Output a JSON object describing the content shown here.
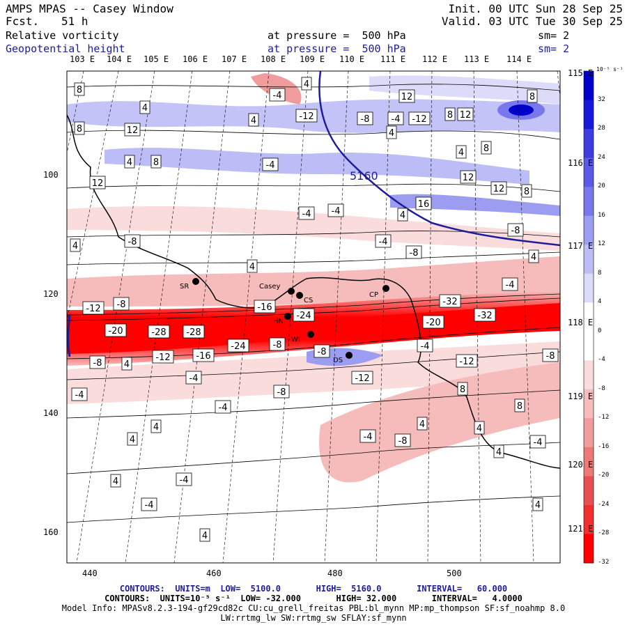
{
  "header": {
    "title": "AMPS MPAS -- Casey Window",
    "forecast_label": "Fcst.",
    "forecast_value": "51 h",
    "init": "Init. 00 UTC Sun 28 Sep 25",
    "valid": "Valid. 03 UTC Tue 30 Sep 25",
    "field1": "Relative vorticity",
    "field1_pressure": "at pressure =  500 hPa",
    "field1_sm": "sm= 2",
    "field2": "Geopotential height",
    "field2_pressure": "at pressure =  500 hPa",
    "field2_sm": "sm= 2"
  },
  "top_lon_labels": [
    "103 E",
    "104 E",
    "105 E",
    "106 E",
    "107 E",
    "108 E",
    "109 E",
    "110 E",
    "111 E",
    "112 E",
    "113 E",
    "114 E"
  ],
  "right_lat_labels": [
    "115 E",
    "116 E",
    "117 E",
    "118 E",
    "119 E",
    "120 E",
    "121 E"
  ],
  "x_axis_labels": [
    "440",
    "460",
    "480",
    "500"
  ],
  "y_axis_labels": [
    "100",
    "120",
    "140",
    "160"
  ],
  "colorbar": {
    "unit": "10⁻⁵ s⁻¹",
    "ticks": [
      "32",
      "28",
      "24",
      "20",
      "16",
      "12",
      "8",
      "4",
      "0",
      "-4",
      "-8",
      "-12",
      "-16",
      "-20",
      "-24",
      "-28",
      "-32"
    ],
    "colors": [
      "#0000c8",
      "#1818d8",
      "#3c3ce0",
      "#5a5ae6",
      "#7878ec",
      "#9c9cf0",
      "#bcbcf6",
      "#dcdcfa",
      "#ffffff",
      "#ffffff",
      "#fadcdc",
      "#f6bcbc",
      "#f09c9c",
      "#ec7878",
      "#e65050",
      "#f03030",
      "#ff0000"
    ]
  },
  "stations": [
    "SR",
    "Casey",
    "CS",
    "CP",
    "HN",
    "WI",
    "DS"
  ],
  "height_contour_label": "5160",
  "contour_labels": {
    "positive": [
      "8",
      "4",
      "8",
      "12",
      "4",
      "8",
      "12",
      "4",
      "4",
      "-4",
      "-12",
      "-4",
      "-4",
      "12",
      "-8",
      "-12",
      "4",
      "8",
      "12",
      "8",
      "8",
      "4",
      "12",
      "12",
      "16",
      "8",
      "4",
      "4",
      "-8",
      "-4",
      "-4",
      "-8",
      "-8",
      "-4",
      "4",
      "4",
      "-4",
      "-16",
      "-24",
      "-12",
      "-8",
      "-20",
      "-28",
      "-28",
      "-24",
      "-8",
      "-20",
      "-32",
      "-32",
      "-8",
      "-4",
      "-12",
      "-16",
      "-8",
      "4",
      "-12",
      "-4",
      "-4",
      "-8",
      "-4",
      "8",
      "8",
      "-12",
      "-8",
      "4",
      "-8",
      "-4",
      "4",
      "-4",
      "4",
      "4",
      "4",
      "4",
      "-4",
      "-4",
      "4",
      "4"
    ]
  },
  "footer": {
    "line1": "CONTOURS:  UNITS=m  LOW=  5100.0       HIGH=  5160.0       INTERVAL=   60.000",
    "line2": "CONTOURS:  UNITS=10⁻⁵ s⁻¹  LOW= -32.000       HIGH= 32.000       INTERVAL=   4.0000",
    "line3": "Model Info: MPASv8.2.3-194-gf29cd82c CU:cu_grell_freitas PBL:bl_mynn MP:mp_thompson SF:sf_noahmp 8.0",
    "line4": "LW:rrtmg_lw SW:rrtmg_sw SFLAY:sf_mynn"
  }
}
